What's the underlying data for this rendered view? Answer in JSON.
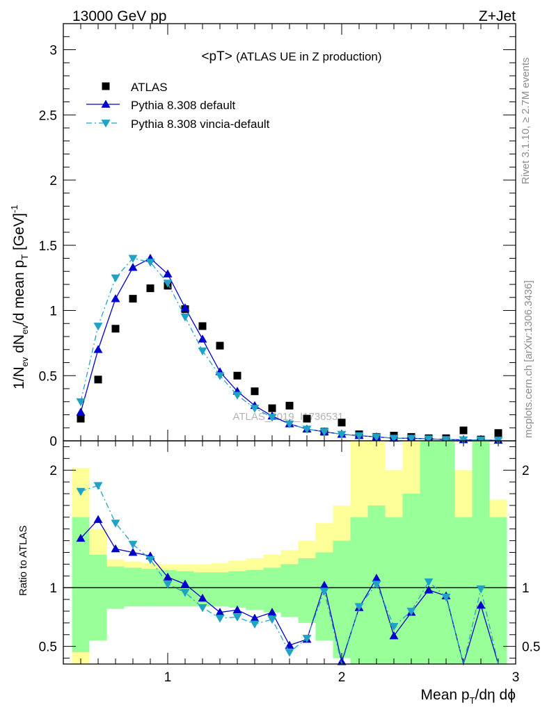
{
  "header": {
    "left": "13000 GeV pp",
    "right": "Z+Jet"
  },
  "side_labels": {
    "rivet": "Rivet 3.1.10, ≥ 2.7M events",
    "mcplots": "mcplots.cern.ch [arXiv:1306.3436]"
  },
  "colors": {
    "data": "#000000",
    "pythia_default": "#0000cc",
    "vincia": "#1fa3c4",
    "band_inner": "#99ff99",
    "band_outer": "#ffff99"
  },
  "chart_data": [
    {
      "type": "scatter",
      "title": "<pT>",
      "subtitle": "(ATLAS UE in Z production)",
      "watermark": "ATLAS_2019_I1736531",
      "ylabel": {
        "main": "1/N",
        "sub1": "ev",
        "mid1": " dN",
        "sub2": "ev",
        "mid2": "/d mean p",
        "sub3": "T",
        "mid3": " [GeV]",
        "sup": "-1"
      },
      "xlim": [
        0.4,
        3.0
      ],
      "ylim": [
        0,
        3.2
      ],
      "x_ticks": [
        1,
        2,
        3
      ],
      "y_ticks": [
        0,
        0.5,
        1,
        1.5,
        2,
        2.5,
        3
      ],
      "y_tick_labels": [
        "0",
        "0.5",
        "1",
        "1.5",
        "2",
        "2.5",
        "3"
      ],
      "x": [
        0.5,
        0.6,
        0.7,
        0.8,
        0.9,
        1.0,
        1.1,
        1.2,
        1.3,
        1.4,
        1.5,
        1.6,
        1.7,
        1.8,
        1.9,
        2.0,
        2.1,
        2.2,
        2.3,
        2.4,
        2.5,
        2.6,
        2.7,
        2.8,
        2.9
      ],
      "legend": [
        {
          "label": "ATLAS",
          "key": "data"
        },
        {
          "label": "Pythia 8.308 default",
          "key": "pythia_default"
        },
        {
          "label": "Pythia 8.308 vincia-default",
          "key": "vincia"
        }
      ],
      "series": [
        {
          "name": "ATLAS",
          "key": "data",
          "marker": "square",
          "values": [
            0.17,
            0.47,
            0.86,
            1.09,
            1.17,
            1.19,
            1.01,
            0.88,
            0.73,
            0.5,
            0.38,
            0.25,
            0.27,
            0.17,
            0.07,
            0.14,
            0.05,
            0.03,
            0.04,
            0.03,
            0.02,
            0.02,
            0.08,
            0.01,
            0.06
          ]
        },
        {
          "name": "Pythia 8.308 default",
          "key": "pythia_default",
          "marker": "triangle-up",
          "line": "solid",
          "values": [
            0.22,
            0.7,
            1.09,
            1.33,
            1.4,
            1.28,
            1.02,
            0.78,
            0.53,
            0.38,
            0.27,
            0.19,
            0.13,
            0.09,
            0.07,
            0.05,
            0.04,
            0.03,
            0.02,
            0.02,
            0.015,
            0.01,
            0.008,
            0.006,
            0.004
          ]
        },
        {
          "name": "Pythia 8.308 vincia-default",
          "key": "vincia",
          "marker": "triangle-down",
          "line": "dashdot",
          "values": [
            0.3,
            0.88,
            1.25,
            1.4,
            1.37,
            1.21,
            0.95,
            0.69,
            0.5,
            0.35,
            0.25,
            0.18,
            0.13,
            0.09,
            0.07,
            0.05,
            0.04,
            0.03,
            0.02,
            0.02,
            0.015,
            0.01,
            0.008,
            0.006,
            0.004
          ]
        }
      ]
    },
    {
      "type": "scatter",
      "ylabel": "Ratio to ATLAS",
      "xlabel": {
        "main": "Mean p",
        "sub": "T",
        "rest": "/dη dϕ"
      },
      "xlim": [
        0.4,
        3.0
      ],
      "ylim": [
        0.35,
        2.25
      ],
      "reference_line": 1,
      "x_ticks": [
        1,
        2,
        3
      ],
      "x_tick_labels": [
        "1",
        "2",
        "3"
      ],
      "y_ticks": [
        0.5,
        1,
        2
      ],
      "y_tick_labels": [
        "0.5",
        "1",
        "2"
      ],
      "x": [
        0.5,
        0.6,
        0.7,
        0.8,
        0.9,
        1.0,
        1.1,
        1.2,
        1.3,
        1.4,
        1.5,
        1.6,
        1.7,
        1.8,
        1.9,
        2.0,
        2.1,
        2.2,
        2.3,
        2.4,
        2.5,
        2.6,
        2.7,
        2.8,
        2.9
      ],
      "bin_width": 0.1,
      "band_inner": {
        "low": [
          0.45,
          0.55,
          0.82,
          0.84,
          0.84,
          0.84,
          0.84,
          0.84,
          0.84,
          0.83,
          0.81,
          0.79,
          0.75,
          0.7,
          0.55,
          0.4,
          0.3,
          0.25,
          0.3,
          0.3,
          0.3,
          0.3,
          0.3,
          0.3,
          0.3
        ],
        "high": [
          1.6,
          1.28,
          1.18,
          1.17,
          1.16,
          1.15,
          1.14,
          1.13,
          1.13,
          1.14,
          1.15,
          1.17,
          1.2,
          1.25,
          1.3,
          1.4,
          1.6,
          1.7,
          1.6,
          1.8,
          2.4,
          2.4,
          1.6,
          2.4,
          1.6
        ]
      },
      "band_outer": {
        "low": [
          0.25,
          0.65,
          0.89,
          0.91,
          0.91,
          0.91,
          0.9,
          0.9,
          0.9,
          0.88,
          0.86,
          0.84,
          0.8,
          0.75,
          0.55,
          0.7,
          0.3,
          0.3,
          0.48,
          0.3,
          0.3,
          0.3,
          0.3,
          0.3,
          0.7
        ],
        "high": [
          2.02,
          1.5,
          1.24,
          1.22,
          1.21,
          1.2,
          1.2,
          1.2,
          1.21,
          1.23,
          1.25,
          1.28,
          1.32,
          1.4,
          1.55,
          1.7,
          2.4,
          2.4,
          2.0,
          2.4,
          2.4,
          2.4,
          2.0,
          2.4,
          1.75
        ]
      },
      "series": [
        {
          "name": "Pythia 8.308 default",
          "key": "pythia_default",
          "marker": "triangle-up",
          "line": "solid",
          "values": [
            1.42,
            1.58,
            1.33,
            1.3,
            1.27,
            1.09,
            1.03,
            0.91,
            0.79,
            0.81,
            0.74,
            0.79,
            0.51,
            0.56,
            1.02,
            0.37,
            0.83,
            1.08,
            0.59,
            0.79,
            0.98,
            0.93,
            0.3,
            0.85,
            0.3
          ]
        },
        {
          "name": "Pythia 8.308 vincia-default",
          "key": "vincia",
          "marker": "triangle-down",
          "line": "dashdot",
          "values": [
            1.82,
            1.87,
            1.55,
            1.37,
            1.24,
            1.03,
            0.96,
            0.83,
            0.74,
            0.75,
            0.69,
            0.73,
            0.45,
            0.57,
            0.97,
            0.35,
            0.84,
            1.03,
            0.67,
            0.8,
            1.05,
            0.92,
            0.3,
            0.99,
            0.3
          ]
        }
      ]
    }
  ]
}
